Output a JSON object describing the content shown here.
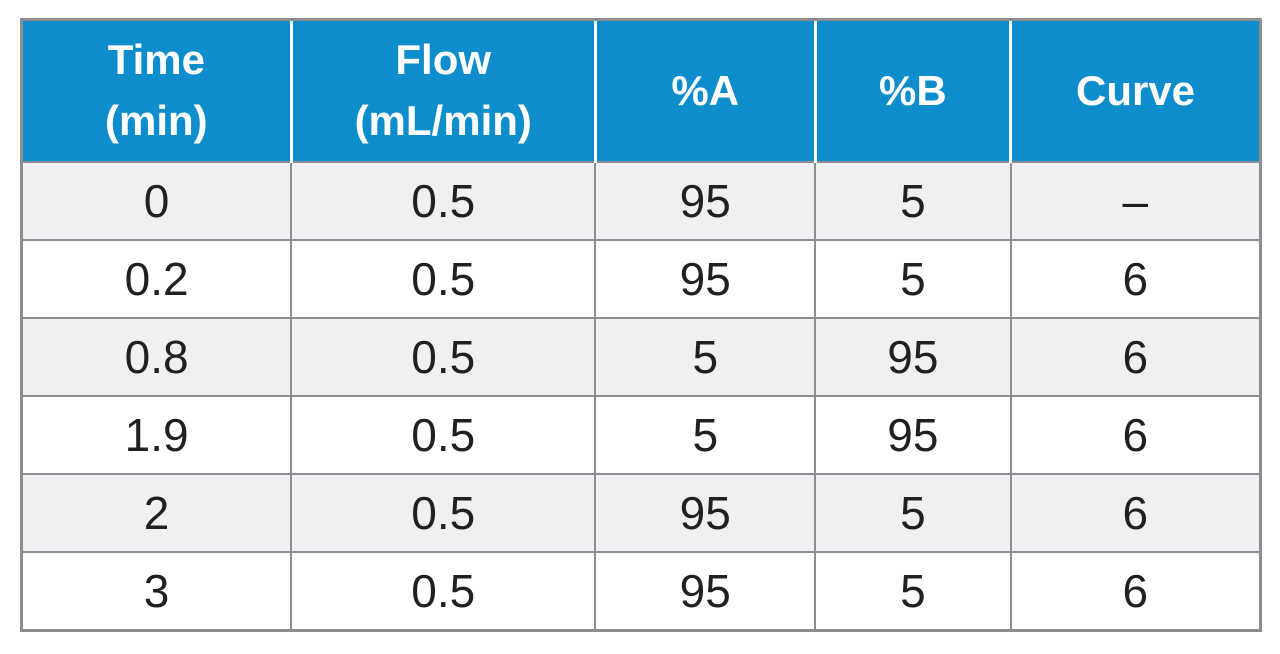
{
  "table": {
    "columns": [
      {
        "id": "time",
        "label": "Time\n(min)"
      },
      {
        "id": "flow",
        "label": "Flow\n(mL/min)"
      },
      {
        "id": "pa",
        "label": "%A"
      },
      {
        "id": "pb",
        "label": "%B"
      },
      {
        "id": "curve",
        "label": "Curve"
      }
    ],
    "rows": [
      {
        "time": "0",
        "flow": "0.5",
        "pa": "95",
        "pb": "5",
        "curve": "–"
      },
      {
        "time": "0.2",
        "flow": "0.5",
        "pa": "95",
        "pb": "5",
        "curve": "6"
      },
      {
        "time": "0.8",
        "flow": "0.5",
        "pa": "5",
        "pb": "95",
        "curve": "6"
      },
      {
        "time": "1.9",
        "flow": "0.5",
        "pa": "5",
        "pb": "95",
        "curve": "6"
      },
      {
        "time": "2",
        "flow": "0.5",
        "pa": "95",
        "pb": "5",
        "curve": "6"
      },
      {
        "time": "3",
        "flow": "0.5",
        "pa": "95",
        "pb": "5",
        "curve": "6"
      }
    ]
  },
  "colors": {
    "header_bg": "#0E8DCD",
    "header_text": "#FFFFFF",
    "row_alt_bg": "#F0F0F2",
    "row_bg": "#FFFFFF",
    "border": "#8D8D91",
    "body_text": "#231F20"
  }
}
